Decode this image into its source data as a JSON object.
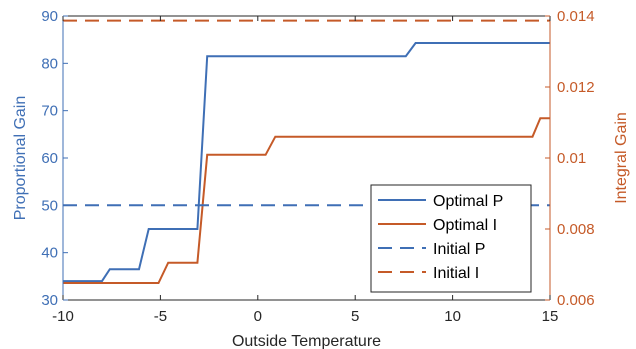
{
  "chart_data": {
    "type": "line",
    "xlabel": "Outside Temperature",
    "ylabel_left": "Proportional Gain",
    "ylabel_right": "Integral Gain",
    "xlim": [
      -10,
      15
    ],
    "ylim_left": [
      30,
      90
    ],
    "ylim_right": [
      0.006,
      0.014
    ],
    "x_ticks": [
      -10,
      -5,
      0,
      5,
      10,
      15
    ],
    "x_tick_labels": [
      "-10",
      "-5",
      "0",
      "5",
      "10",
      "15"
    ],
    "y_left_ticks": [
      30,
      40,
      50,
      60,
      70,
      80,
      90
    ],
    "y_left_tick_labels": [
      "30",
      "40",
      "50",
      "60",
      "70",
      "80",
      "90"
    ],
    "y_right_ticks": [
      0.006,
      0.008,
      0.01,
      0.012,
      0.014
    ],
    "y_right_tick_labels": [
      "0.006",
      "0.008",
      "0.01",
      "0.012",
      "0.014"
    ],
    "grid": false,
    "legend_position": "bottom-right",
    "colors": {
      "P": "#3f6fb5",
      "I": "#c55a28"
    },
    "series": [
      {
        "name": "Optimal P",
        "axis": "left",
        "style": "solid",
        "x": [
          -10,
          -8,
          -7.6,
          -6.1,
          -5.6,
          -3.1,
          -2.6,
          7.6,
          8.1,
          15
        ],
        "y": [
          34,
          34,
          36.5,
          36.5,
          45,
          45,
          81.5,
          81.5,
          84.3,
          84.3
        ]
      },
      {
        "name": "Optimal I",
        "axis": "right",
        "style": "solid",
        "x": [
          -10,
          -5.1,
          -4.6,
          -3.1,
          -2.6,
          0.4,
          0.9,
          14.1,
          14.5,
          15
        ],
        "y": [
          0.00648,
          0.00648,
          0.00705,
          0.00705,
          0.01009,
          0.01009,
          0.0106,
          0.0106,
          0.01112,
          0.01112
        ]
      },
      {
        "name": "Initial P",
        "axis": "left",
        "style": "dashed",
        "x": [
          -10,
          15
        ],
        "y": [
          50,
          50
        ]
      },
      {
        "name": "Initial I",
        "axis": "right",
        "style": "dashed",
        "x": [
          -10,
          15
        ],
        "y": [
          0.01387,
          0.01387
        ]
      }
    ]
  }
}
